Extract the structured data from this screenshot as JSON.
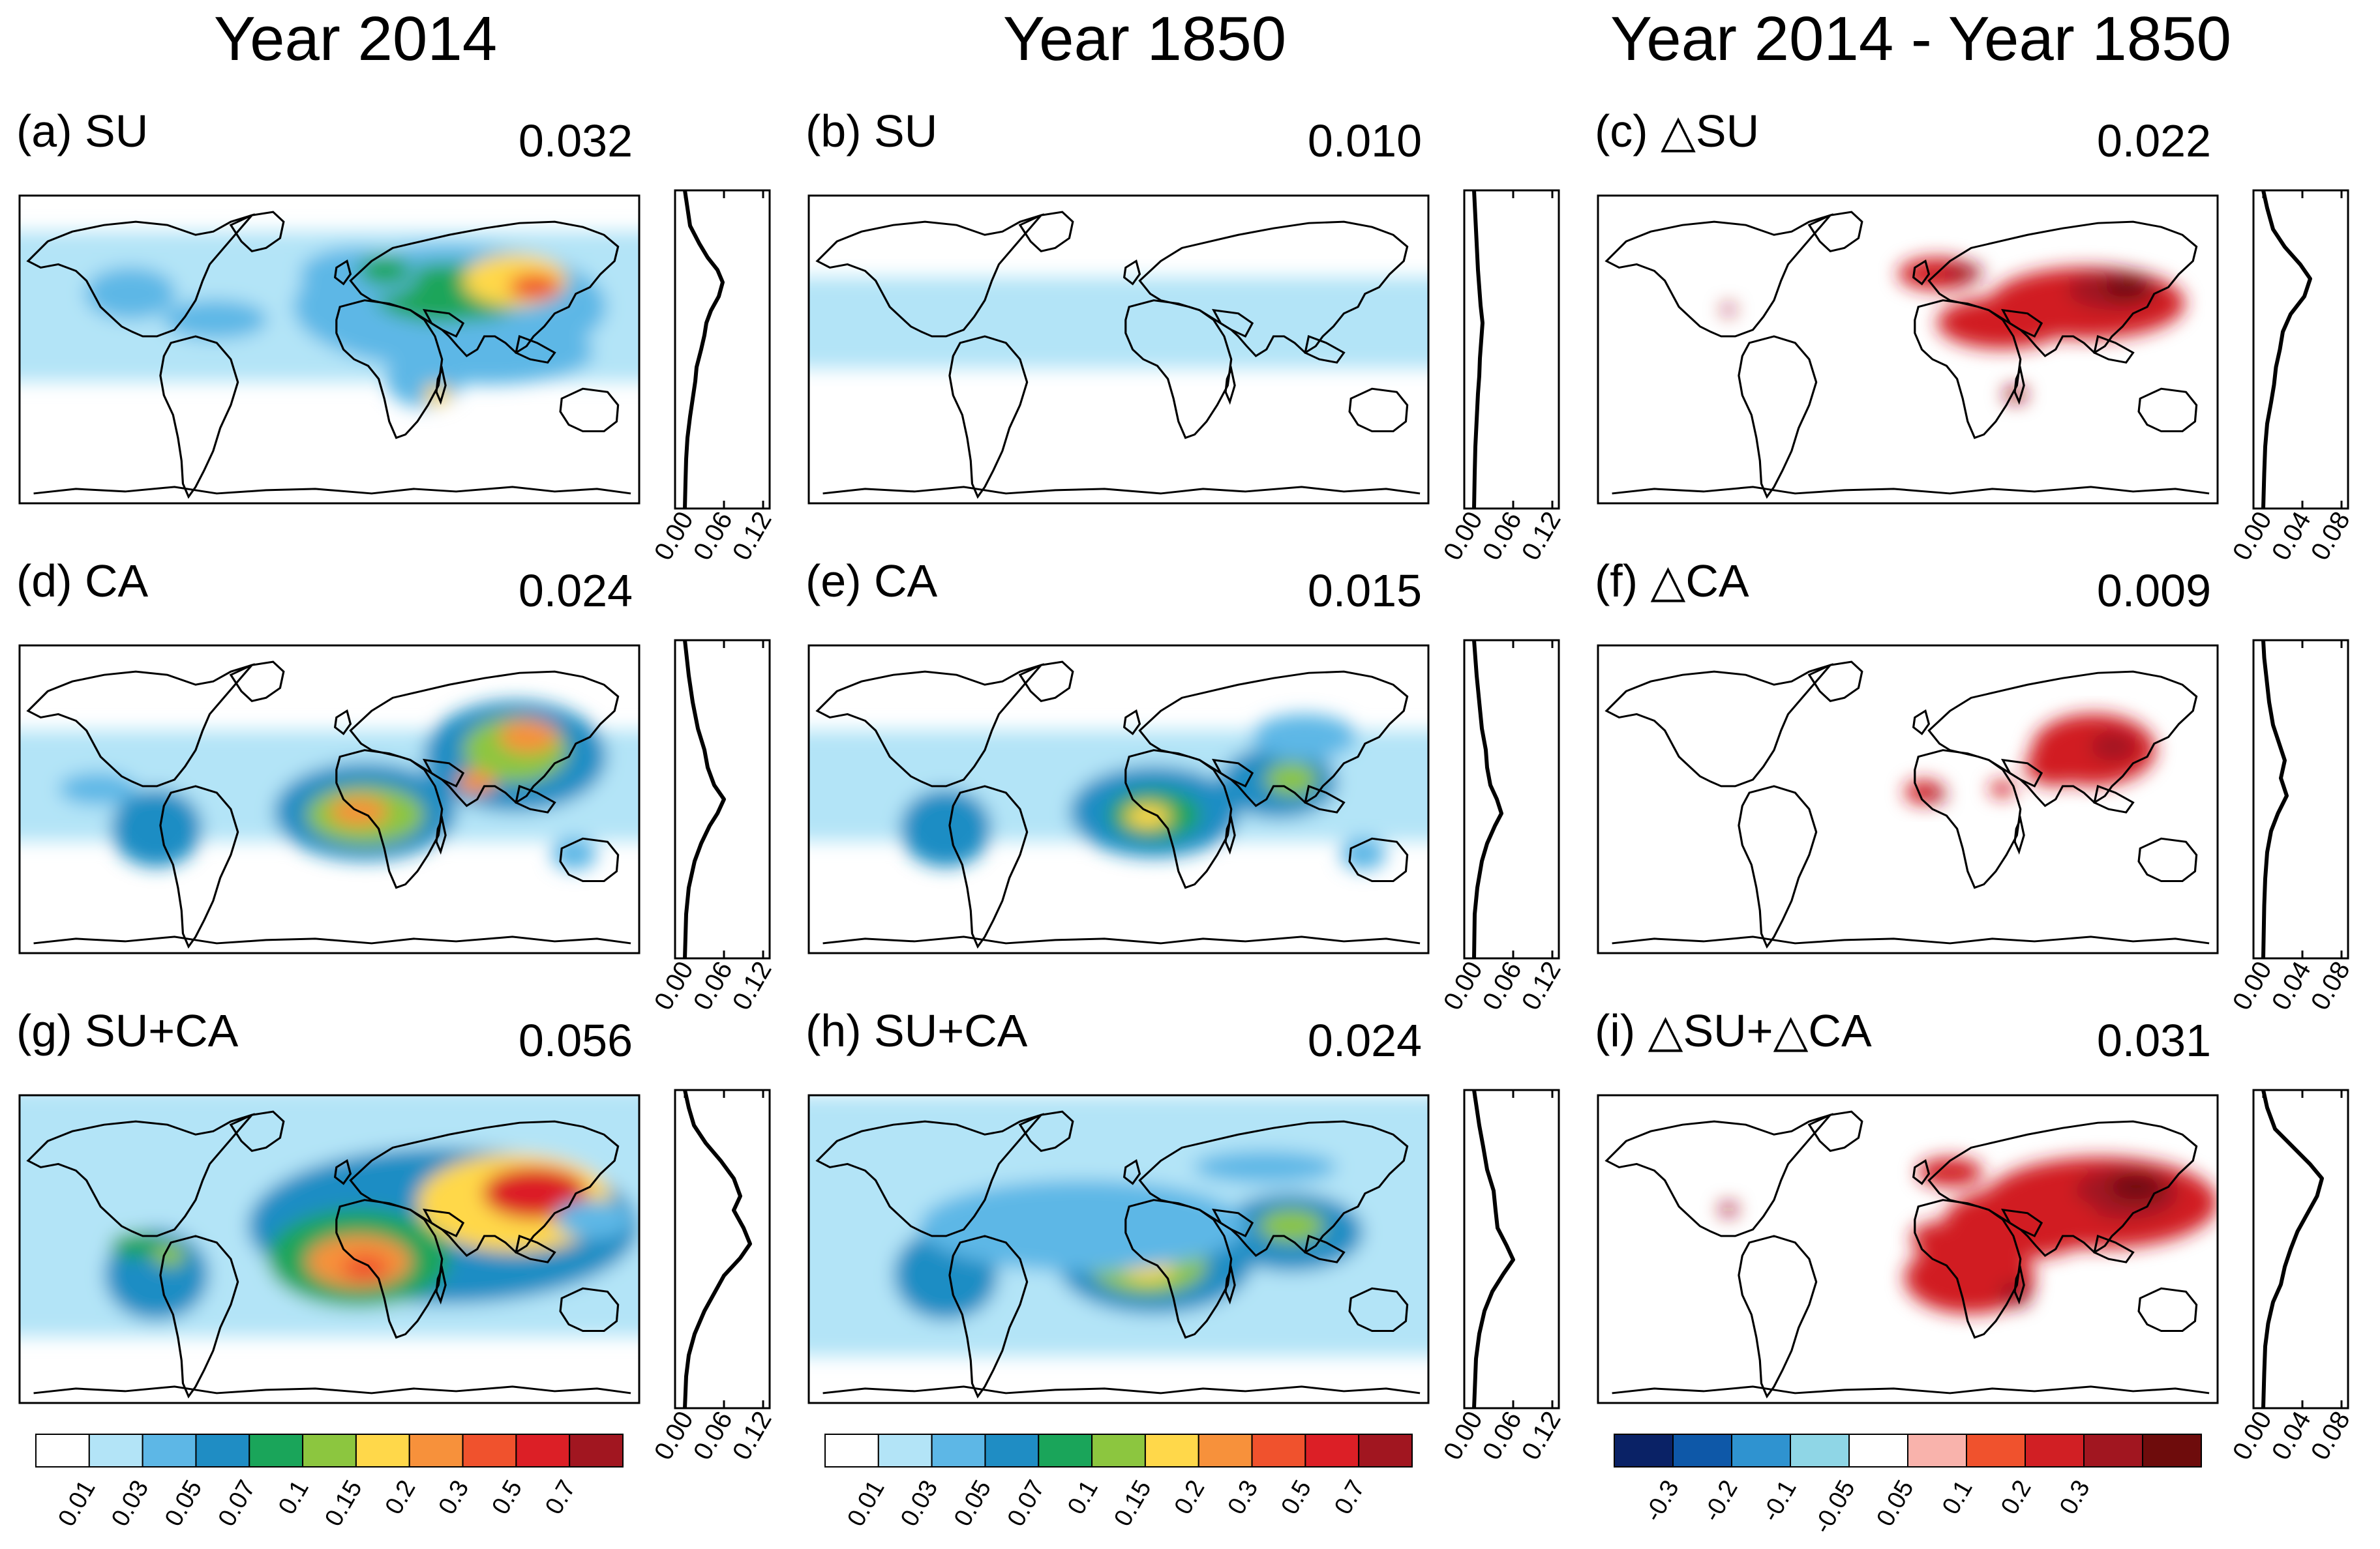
{
  "figure": {
    "column_titles": [
      "Year 2014",
      "Year 1850",
      "Year 2014 - Year 1850"
    ],
    "colorbars": [
      {
        "colors": [
          "#ffffff",
          "#b3e4f7",
          "#5db7e6",
          "#1f8dc4",
          "#1aa55a",
          "#8cc63f",
          "#ffd84a",
          "#f7913b",
          "#f0522d",
          "#dc1f26",
          "#a11620"
        ],
        "labels": [
          "0.01",
          "0.03",
          "0.05",
          "0.07",
          "0.1",
          "0.15",
          "0.2",
          "0.3",
          "0.5",
          "0.7"
        ]
      },
      {
        "colors": [
          "#ffffff",
          "#b3e4f7",
          "#5db7e6",
          "#1f8dc4",
          "#1aa55a",
          "#8cc63f",
          "#ffd84a",
          "#f7913b",
          "#f0522d",
          "#dc1f26",
          "#a11620"
        ],
        "labels": [
          "0.01",
          "0.03",
          "0.05",
          "0.07",
          "0.1",
          "0.15",
          "0.2",
          "0.3",
          "0.5",
          "0.7"
        ]
      },
      {
        "colors": [
          "#0a2266",
          "#0e58a8",
          "#2f93d0",
          "#8fd6e6",
          "#ffffff",
          "#f9b3ac",
          "#f0522d",
          "#d11f24",
          "#a11620",
          "#6e0c0c"
        ],
        "labels": [
          "-0.3",
          "-0.2",
          "-0.1",
          "-0.05",
          "0.05",
          "0.1",
          "0.2",
          "0.3"
        ]
      }
    ]
  },
  "chart_data": [
    {
      "type": "heatmap",
      "panel": "(a) SU",
      "label": "(a) SU",
      "global_mean": "0.032",
      "profile_ticks": [
        "0.00",
        "0.06",
        "0.12"
      ],
      "profile_max": 0.12,
      "profile": [
        [
          0,
          90
        ],
        [
          0.004,
          80
        ],
        [
          0.008,
          70
        ],
        [
          0.022,
          60
        ],
        [
          0.035,
          52
        ],
        [
          0.05,
          45
        ],
        [
          0.058,
          38
        ],
        [
          0.052,
          30
        ],
        [
          0.04,
          22
        ],
        [
          0.033,
          15
        ],
        [
          0.03,
          8
        ],
        [
          0.025,
          0
        ],
        [
          0.018,
          -10
        ],
        [
          0.016,
          -18
        ],
        [
          0.012,
          -28
        ],
        [
          0.008,
          -38
        ],
        [
          0.004,
          -50
        ],
        [
          0.002,
          -62
        ],
        [
          0.001,
          -75
        ],
        [
          0.0,
          -90
        ]
      ]
    },
    {
      "type": "heatmap",
      "panel": "(b) SU",
      "label": "(b) SU",
      "global_mean": "0.010",
      "profile_ticks": [
        "0.00",
        "0.06",
        "0.12"
      ],
      "profile_max": 0.12,
      "profile": [
        [
          0,
          90
        ],
        [
          0.002,
          75
        ],
        [
          0.004,
          60
        ],
        [
          0.006,
          45
        ],
        [
          0.008,
          35
        ],
        [
          0.01,
          25
        ],
        [
          0.013,
          15
        ],
        [
          0.011,
          5
        ],
        [
          0.009,
          -5
        ],
        [
          0.008,
          -15
        ],
        [
          0.006,
          -25
        ],
        [
          0.004,
          -40
        ],
        [
          0.002,
          -55
        ],
        [
          0.001,
          -70
        ],
        [
          0,
          -90
        ]
      ]
    },
    {
      "type": "heatmap",
      "panel": "(c) △SU",
      "label": "(c) △SU",
      "global_mean": "0.022",
      "profile_ticks": [
        "0.00",
        "0.04",
        "0.08"
      ],
      "profile_max": 0.08,
      "profile": [
        [
          0,
          90
        ],
        [
          0.004,
          80
        ],
        [
          0.01,
          68
        ],
        [
          0.022,
          58
        ],
        [
          0.038,
          48
        ],
        [
          0.048,
          40
        ],
        [
          0.042,
          30
        ],
        [
          0.028,
          20
        ],
        [
          0.02,
          10
        ],
        [
          0.017,
          0
        ],
        [
          0.013,
          -10
        ],
        [
          0.011,
          -20
        ],
        [
          0.008,
          -30
        ],
        [
          0.004,
          -42
        ],
        [
          0.002,
          -55
        ],
        [
          0.001,
          -70
        ],
        [
          0,
          -90
        ]
      ]
    },
    {
      "type": "heatmap",
      "panel": "(d) CA",
      "label": "(d) CA",
      "global_mean": "0.024",
      "profile_ticks": [
        "0.00",
        "0.06",
        "0.12"
      ],
      "profile_max": 0.12,
      "profile": [
        [
          0,
          90
        ],
        [
          0.003,
          80
        ],
        [
          0.006,
          70
        ],
        [
          0.012,
          55
        ],
        [
          0.02,
          40
        ],
        [
          0.03,
          28
        ],
        [
          0.035,
          18
        ],
        [
          0.045,
          8
        ],
        [
          0.06,
          0
        ],
        [
          0.05,
          -8
        ],
        [
          0.038,
          -15
        ],
        [
          0.025,
          -25
        ],
        [
          0.015,
          -35
        ],
        [
          0.006,
          -50
        ],
        [
          0.002,
          -65
        ],
        [
          0,
          -90
        ]
      ]
    },
    {
      "type": "heatmap",
      "panel": "(e) CA",
      "label": "(e) CA",
      "global_mean": "0.015",
      "profile_ticks": [
        "0.00",
        "0.06",
        "0.12"
      ],
      "profile_max": 0.12,
      "profile": [
        [
          0,
          90
        ],
        [
          0.002,
          80
        ],
        [
          0.004,
          70
        ],
        [
          0.008,
          55
        ],
        [
          0.012,
          40
        ],
        [
          0.018,
          28
        ],
        [
          0.02,
          18
        ],
        [
          0.025,
          8
        ],
        [
          0.035,
          0
        ],
        [
          0.042,
          -8
        ],
        [
          0.032,
          -15
        ],
        [
          0.02,
          -25
        ],
        [
          0.012,
          -35
        ],
        [
          0.005,
          -50
        ],
        [
          0.001,
          -65
        ],
        [
          0,
          -90
        ]
      ]
    },
    {
      "type": "heatmap",
      "panel": "(f) △CA",
      "label": "(f) △CA",
      "global_mean": "0.009",
      "profile_ticks": [
        "0.00",
        "0.04",
        "0.08"
      ],
      "profile_max": 0.08,
      "profile": [
        [
          0,
          90
        ],
        [
          0.001,
          80
        ],
        [
          0.003,
          70
        ],
        [
          0.006,
          55
        ],
        [
          0.01,
          42
        ],
        [
          0.016,
          32
        ],
        [
          0.022,
          22
        ],
        [
          0.018,
          12
        ],
        [
          0.024,
          2
        ],
        [
          0.015,
          -8
        ],
        [
          0.008,
          -18
        ],
        [
          0.004,
          -30
        ],
        [
          0.002,
          -45
        ],
        [
          0.001,
          -60
        ],
        [
          0,
          -90
        ]
      ]
    },
    {
      "type": "heatmap",
      "panel": "(g) SU+CA",
      "label": "(g) SU+CA",
      "global_mean": "0.056",
      "profile_ticks": [
        "0.00",
        "0.06",
        "0.12"
      ],
      "profile_max": 0.12,
      "profile": [
        [
          0,
          90
        ],
        [
          0.006,
          80
        ],
        [
          0.014,
          70
        ],
        [
          0.032,
          60
        ],
        [
          0.055,
          50
        ],
        [
          0.075,
          40
        ],
        [
          0.085,
          30
        ],
        [
          0.075,
          22
        ],
        [
          0.09,
          12
        ],
        [
          0.1,
          3
        ],
        [
          0.085,
          -5
        ],
        [
          0.06,
          -15
        ],
        [
          0.045,
          -25
        ],
        [
          0.03,
          -35
        ],
        [
          0.015,
          -48
        ],
        [
          0.006,
          -60
        ],
        [
          0.002,
          -72
        ],
        [
          0,
          -90
        ]
      ]
    },
    {
      "type": "heatmap",
      "panel": "(h) SU+CA",
      "label": "(h) SU+CA",
      "global_mean": "0.024",
      "profile_ticks": [
        "0.00",
        "0.06",
        "0.12"
      ],
      "profile_max": 0.12,
      "profile": [
        [
          0,
          90
        ],
        [
          0.004,
          80
        ],
        [
          0.008,
          70
        ],
        [
          0.014,
          58
        ],
        [
          0.02,
          45
        ],
        [
          0.03,
          33
        ],
        [
          0.033,
          22
        ],
        [
          0.036,
          12
        ],
        [
          0.05,
          2
        ],
        [
          0.06,
          -6
        ],
        [
          0.045,
          -14
        ],
        [
          0.028,
          -24
        ],
        [
          0.016,
          -35
        ],
        [
          0.008,
          -48
        ],
        [
          0.003,
          -62
        ],
        [
          0,
          -90
        ]
      ]
    },
    {
      "type": "heatmap",
      "panel": "(i) △SU+△CA",
      "label": "(i) △SU+△CA",
      "global_mean": "0.031",
      "profile_ticks": [
        "0.00",
        "0.04",
        "0.08"
      ],
      "profile_max": 0.08,
      "profile": [
        [
          0,
          90
        ],
        [
          0.004,
          80
        ],
        [
          0.012,
          68
        ],
        [
          0.03,
          58
        ],
        [
          0.048,
          48
        ],
        [
          0.06,
          40
        ],
        [
          0.055,
          30
        ],
        [
          0.045,
          20
        ],
        [
          0.035,
          10
        ],
        [
          0.028,
          0
        ],
        [
          0.022,
          -10
        ],
        [
          0.018,
          -20
        ],
        [
          0.01,
          -30
        ],
        [
          0.005,
          -42
        ],
        [
          0.002,
          -55
        ],
        [
          0.001,
          -70
        ],
        [
          0,
          -90
        ]
      ]
    }
  ]
}
